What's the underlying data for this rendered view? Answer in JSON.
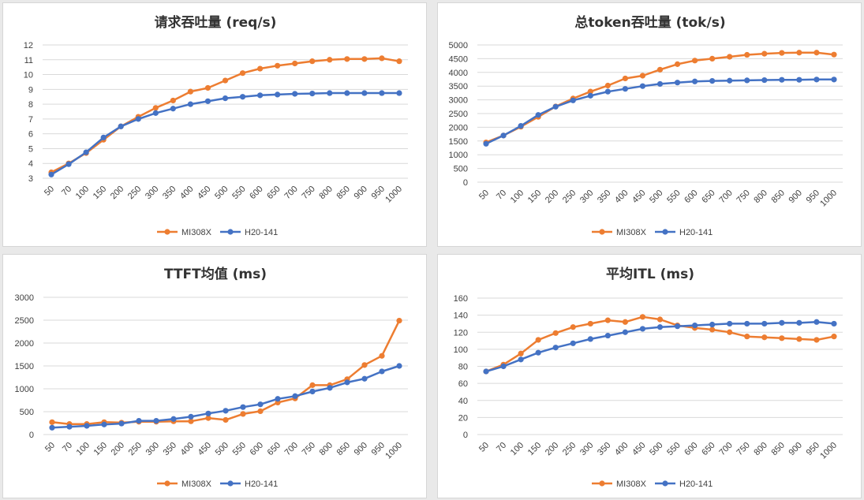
{
  "colors": {
    "mi308x": "#ED7D31",
    "h20": "#4472C4",
    "grid": "#d9d9d9"
  },
  "chart_data": [
    {
      "type": "line",
      "title": "请求吞吐量 (req/s)",
      "categories": [
        "50",
        "70",
        "100",
        "150",
        "200",
        "250",
        "300",
        "350",
        "400",
        "450",
        "500",
        "550",
        "600",
        "650",
        "700",
        "750",
        "800",
        "850",
        "900",
        "950",
        "1000"
      ],
      "ylim": [
        3,
        12
      ],
      "yticks": [
        3,
        4,
        5,
        6,
        7,
        8,
        9,
        10,
        11,
        12
      ],
      "grid": true,
      "legend": "bottom",
      "series": [
        {
          "name": "MI308X",
          "values": [
            3.4,
            4.0,
            4.7,
            5.6,
            6.5,
            7.15,
            7.75,
            8.25,
            8.85,
            9.1,
            9.6,
            10.1,
            10.4,
            10.6,
            10.75,
            10.9,
            11.0,
            11.05,
            11.05,
            11.1,
            10.9
          ]
        },
        {
          "name": "H20-141",
          "values": [
            3.25,
            3.95,
            4.75,
            5.75,
            6.5,
            7.0,
            7.4,
            7.7,
            8.0,
            8.2,
            8.4,
            8.5,
            8.6,
            8.65,
            8.7,
            8.72,
            8.75,
            8.75,
            8.75,
            8.75,
            8.75
          ]
        }
      ]
    },
    {
      "type": "line",
      "title": "总token吞吐量 (tok/s)",
      "categories": [
        "50",
        "70",
        "100",
        "150",
        "200",
        "250",
        "300",
        "350",
        "400",
        "450",
        "500",
        "550",
        "600",
        "650",
        "700",
        "750",
        "800",
        "850",
        "900",
        "950",
        "1000"
      ],
      "ylim": [
        0,
        5000
      ],
      "yticks": [
        0,
        500,
        1000,
        1500,
        2000,
        2500,
        3000,
        3500,
        4000,
        4500,
        5000
      ],
      "grid": true,
      "legend": "bottom",
      "series": [
        {
          "name": "MI308X",
          "values": [
            1450,
            1700,
            2020,
            2380,
            2760,
            3050,
            3300,
            3520,
            3780,
            3880,
            4100,
            4300,
            4430,
            4500,
            4570,
            4640,
            4680,
            4710,
            4720,
            4720,
            4650
          ]
        },
        {
          "name": "H20-141",
          "values": [
            1400,
            1700,
            2050,
            2450,
            2750,
            2980,
            3150,
            3300,
            3400,
            3500,
            3580,
            3630,
            3670,
            3690,
            3700,
            3710,
            3720,
            3730,
            3730,
            3740,
            3740
          ]
        }
      ]
    },
    {
      "type": "line",
      "title": "TTFT均值 (ms)",
      "categories": [
        "50",
        "70",
        "100",
        "150",
        "200",
        "250",
        "300",
        "350",
        "400",
        "450",
        "500",
        "550",
        "600",
        "650",
        "700",
        "750",
        "800",
        "850",
        "900",
        "950",
        "1000"
      ],
      "ylim": [
        0,
        3000
      ],
      "yticks": [
        0,
        500,
        1000,
        1500,
        2000,
        2500,
        3000
      ],
      "grid": true,
      "legend": "bottom",
      "series": [
        {
          "name": "MI308X",
          "values": [
            270,
            230,
            230,
            270,
            260,
            280,
            280,
            290,
            290,
            360,
            320,
            450,
            510,
            700,
            790,
            1080,
            1080,
            1210,
            1520,
            1720,
            2490
          ]
        },
        {
          "name": "H20-141",
          "values": [
            150,
            170,
            190,
            220,
            240,
            300,
            300,
            340,
            390,
            460,
            520,
            600,
            660,
            780,
            840,
            940,
            1020,
            1140,
            1220,
            1380,
            1500
          ]
        }
      ]
    },
    {
      "type": "line",
      "title": "平均ITL (ms)",
      "categories": [
        "50",
        "70",
        "100",
        "150",
        "200",
        "250",
        "300",
        "350",
        "400",
        "450",
        "500",
        "550",
        "600",
        "650",
        "700",
        "750",
        "800",
        "850",
        "900",
        "950",
        "1000"
      ],
      "ylim": [
        0,
        160
      ],
      "yticks": [
        0,
        20,
        40,
        60,
        80,
        100,
        120,
        140,
        160
      ],
      "grid": true,
      "legend": "bottom",
      "series": [
        {
          "name": "MI308X",
          "values": [
            74,
            82,
            95,
            111,
            119,
            126,
            130,
            134,
            132,
            138,
            135,
            128,
            125,
            123,
            120,
            115,
            114,
            113,
            112,
            111,
            115
          ]
        },
        {
          "name": "H20-141",
          "values": [
            74,
            80,
            88,
            96,
            102,
            107,
            112,
            116,
            120,
            124,
            126,
            127,
            128,
            129,
            130,
            130,
            130,
            131,
            131,
            132,
            130
          ]
        }
      ]
    }
  ]
}
